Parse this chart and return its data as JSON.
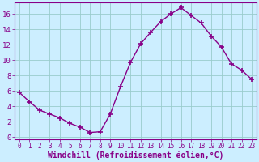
{
  "x": [
    0,
    1,
    2,
    3,
    4,
    5,
    6,
    7,
    8,
    9,
    10,
    11,
    12,
    13,
    14,
    15,
    16,
    17,
    18,
    19,
    20,
    21,
    22,
    23
  ],
  "y": [
    5.8,
    4.6,
    3.5,
    3.0,
    2.5,
    1.8,
    1.3,
    0.6,
    0.7,
    3.0,
    6.5,
    9.7,
    12.1,
    13.6,
    15.0,
    16.0,
    16.8,
    15.8,
    14.8,
    13.1,
    11.7,
    9.5,
    8.7,
    7.5
  ],
  "line_color": "#880088",
  "marker": "+",
  "markersize": 4,
  "markeredgewidth": 1.2,
  "linewidth": 1.0,
  "bg_color": "#cceeff",
  "grid_color": "#99cccc",
  "xlabel": "Windchill (Refroidissement éolien,°C)",
  "xlabel_color": "#880088",
  "tick_color": "#880088",
  "spine_color": "#880088",
  "ylim": [
    -0.3,
    17.5
  ],
  "xlim": [
    -0.5,
    23.5
  ],
  "yticks": [
    0,
    2,
    4,
    6,
    8,
    10,
    12,
    14,
    16
  ],
  "xticks": [
    0,
    1,
    2,
    3,
    4,
    5,
    6,
    7,
    8,
    9,
    10,
    11,
    12,
    13,
    14,
    15,
    16,
    17,
    18,
    19,
    20,
    21,
    22,
    23
  ],
  "ytick_fontsize": 6.5,
  "xtick_fontsize": 5.5,
  "xlabel_fontsize": 7.0
}
